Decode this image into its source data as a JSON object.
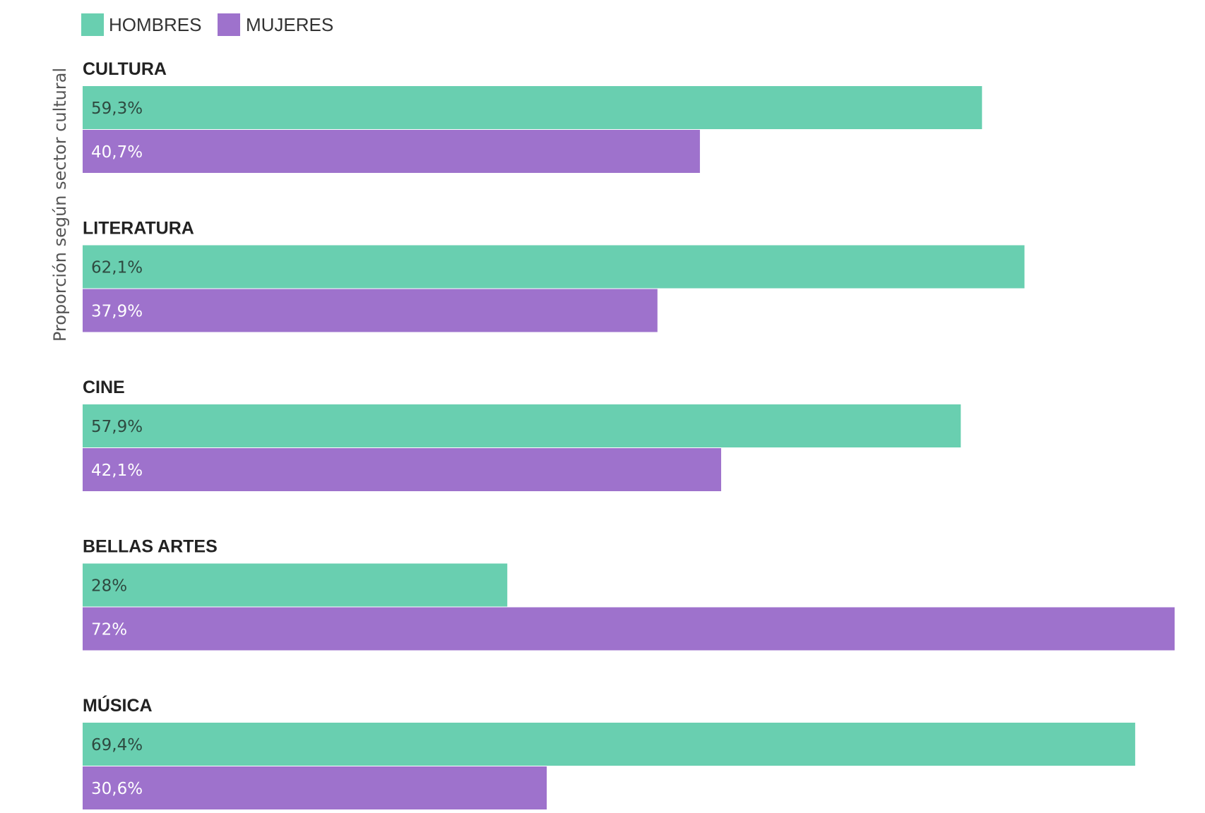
{
  "chart_data": {
    "type": "bar",
    "orientation": "horizontal",
    "ylabel": "Proporción según sector cultural",
    "categories": [
      "CULTURA",
      "LITERATURA",
      "CINE",
      "BELLAS ARTES",
      "MÚSICA"
    ],
    "series": [
      {
        "name": "HOMBRES",
        "color": "#69cfb0",
        "values": [
          59.3,
          62.1,
          57.9,
          28,
          69.4
        ],
        "labels": [
          "59,3%",
          "62,1%",
          "57,9%",
          "28%",
          "69,4%"
        ]
      },
      {
        "name": "MUJERES",
        "color": "#9e72cc",
        "values": [
          40.7,
          37.9,
          42.1,
          72,
          30.6
        ],
        "labels": [
          "40,7%",
          "37,9%",
          "42,1%",
          "72%",
          "30,6%"
        ]
      }
    ],
    "xlim": [
      0,
      72
    ],
    "legend_position": "top-left",
    "grid": false
  }
}
